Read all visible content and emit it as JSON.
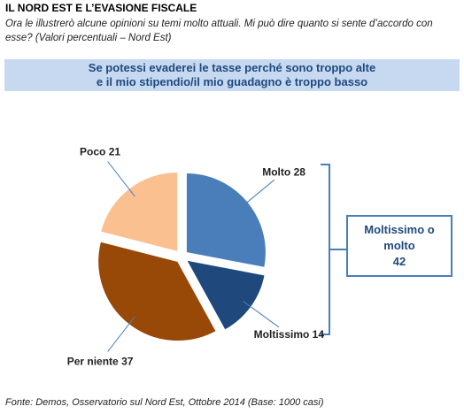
{
  "chart_data": {
    "type": "pie",
    "title": "IL NORD EST E L’EVASIONE FISCALE",
    "subtitle": [
      "Ora le illustrerò alcune opinioni su temi molto attuali. Mi può dire quanto si sente d’accordo con",
      "esse? (Valori percentuali – Nord Est)"
    ],
    "question": [
      "Se potessi evaderei  le tasse perché sono troppo alte",
      "e il mio stipendio/il mio guadagno è troppo basso"
    ],
    "categories": [
      "Molto",
      "Moltissimo",
      "Per niente",
      "Poco"
    ],
    "values": [
      28,
      14,
      37,
      21
    ],
    "colors": [
      "#4a7ebb",
      "#1f497d",
      "#984807",
      "#fac090"
    ],
    "callout": {
      "label": [
        "Moltissimo o",
        "molto"
      ],
      "value": 42
    },
    "source": "Fonte: Demos, Osservatorio sul Nord Est, Ottobre 2014 (Base: 1000 casi)"
  }
}
